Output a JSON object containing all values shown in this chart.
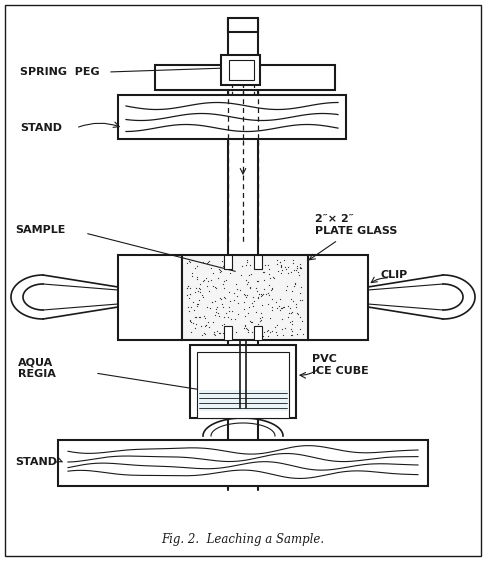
{
  "title": "Fig. 2.  Leaching a Sample.",
  "bg_color": "#ffffff",
  "line_color": "#1a1a1a",
  "labels": {
    "spring_peg": "SPRING  PEG",
    "stand_top": "STAND",
    "sample": "SAMPLE",
    "plate_glass": "2″× 2″\nPLATE GLASS",
    "clip": "CLIP",
    "aqua_regia": "AQUA\nREGIA",
    "pvc_ice_cube": "PVC\nICE CUBE",
    "stand_bottom": "STAND"
  }
}
